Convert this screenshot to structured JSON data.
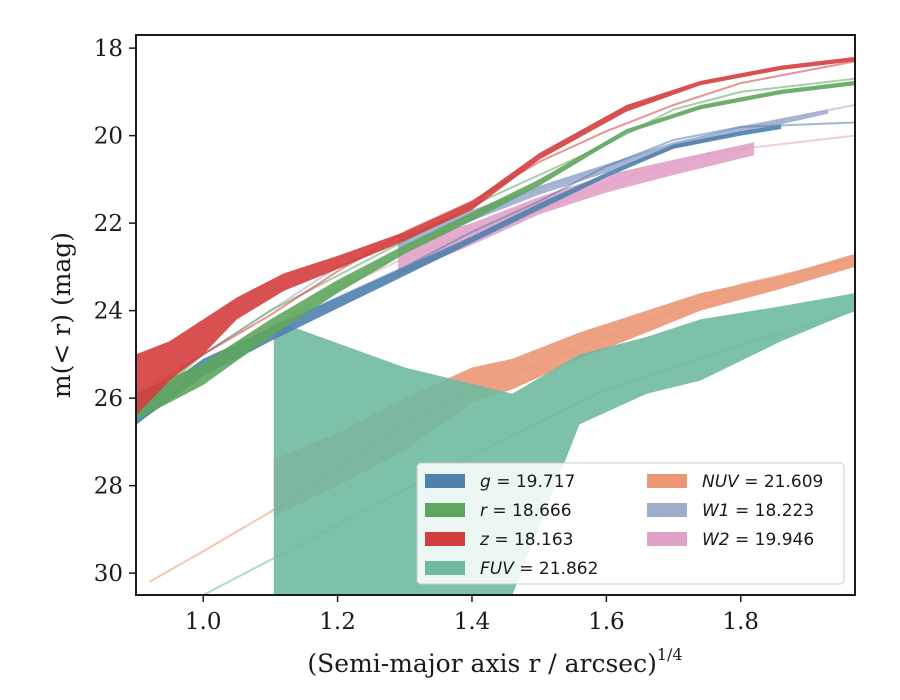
{
  "chart_data": {
    "type": "area",
    "title": "",
    "xlabel": "(Semi-major axis r / arcsec)",
    "xlabel_sup": "1/4",
    "ylabel": "m(< r) (mag)",
    "xlim": [
      0.9,
      1.97
    ],
    "ylim": [
      30.5,
      17.7
    ],
    "y_inverted": true,
    "grid": false,
    "legend_placement": "lower-right",
    "xticks": [
      1.0,
      1.2,
      1.4,
      1.6,
      1.8
    ],
    "xtick_labels": [
      "1.0",
      "1.2",
      "1.4",
      "1.6",
      "1.8"
    ],
    "yticks": [
      18,
      20,
      22,
      24,
      26,
      28,
      30
    ],
    "ytick_labels": [
      "18",
      "20",
      "22",
      "24",
      "26",
      "28",
      "30"
    ],
    "series": [
      {
        "name": "g = 19.717",
        "label_var": "g",
        "label_val": "19.717",
        "color": "#4f81ad",
        "band": [
          [
            0.9,
            26.2,
            26.6
          ],
          [
            1.0,
            25.1,
            25.5
          ],
          [
            1.1,
            24.4,
            24.7
          ],
          [
            1.2,
            23.7,
            23.95
          ],
          [
            1.3,
            23.0,
            23.2
          ],
          [
            1.4,
            22.3,
            22.45
          ],
          [
            1.5,
            21.55,
            21.7
          ],
          [
            1.6,
            20.85,
            20.95
          ],
          [
            1.7,
            20.2,
            20.3
          ],
          [
            1.8,
            19.9,
            20.0
          ],
          [
            1.86,
            19.75,
            19.85
          ]
        ],
        "curve": [
          [
            0.9,
            26.6
          ],
          [
            1.0,
            25.3
          ],
          [
            1.1,
            24.4
          ],
          [
            1.2,
            23.7
          ],
          [
            1.3,
            23.0
          ],
          [
            1.4,
            22.2
          ],
          [
            1.5,
            21.5
          ],
          [
            1.6,
            20.7
          ],
          [
            1.7,
            20.1
          ],
          [
            1.8,
            19.8
          ],
          [
            1.97,
            19.7
          ]
        ]
      },
      {
        "name": "r = 18.666",
        "label_var": "r",
        "label_val": "18.666",
        "color": "#5ea65e",
        "band": [
          [
            0.9,
            25.9,
            26.5
          ],
          [
            1.0,
            25.2,
            25.7
          ],
          [
            1.1,
            24.2,
            24.6
          ],
          [
            1.2,
            23.3,
            23.6
          ],
          [
            1.3,
            22.5,
            22.7
          ],
          [
            1.4,
            21.75,
            21.95
          ],
          [
            1.5,
            21.0,
            21.15
          ],
          [
            1.63,
            19.85,
            19.95
          ],
          [
            1.74,
            19.3,
            19.4
          ],
          [
            1.86,
            18.95,
            19.05
          ],
          [
            1.97,
            18.75,
            18.85
          ]
        ],
        "curve": [
          [
            0.9,
            26.3
          ],
          [
            1.0,
            25.0
          ],
          [
            1.1,
            24.0
          ],
          [
            1.2,
            23.2
          ],
          [
            1.3,
            22.4
          ],
          [
            1.4,
            21.6
          ],
          [
            1.5,
            20.9
          ],
          [
            1.6,
            20.2
          ],
          [
            1.7,
            19.4
          ],
          [
            1.8,
            19.0
          ],
          [
            1.97,
            18.7
          ]
        ]
      },
      {
        "name": "z = 18.163",
        "label_var": "z",
        "label_val": "18.163",
        "color": "#d43d3d",
        "band": [
          [
            0.9,
            25.0,
            26.4
          ],
          [
            0.95,
            24.7,
            25.6
          ],
          [
            1.0,
            24.2,
            25.0
          ],
          [
            1.05,
            23.7,
            24.2
          ],
          [
            1.12,
            23.15,
            23.55
          ],
          [
            1.2,
            22.75,
            23.05
          ],
          [
            1.3,
            22.2,
            22.4
          ],
          [
            1.4,
            21.5,
            21.7
          ],
          [
            1.5,
            20.4,
            20.55
          ],
          [
            1.63,
            19.3,
            19.45
          ],
          [
            1.74,
            18.75,
            18.85
          ],
          [
            1.86,
            18.4,
            18.5
          ],
          [
            1.97,
            18.2,
            18.3
          ]
        ],
        "curve": [
          [
            0.9,
            26.0
          ],
          [
            1.0,
            25.0
          ],
          [
            1.1,
            24.1
          ],
          [
            1.2,
            23.1
          ],
          [
            1.3,
            22.2
          ],
          [
            1.4,
            21.5
          ],
          [
            1.5,
            20.6
          ],
          [
            1.6,
            19.9
          ],
          [
            1.7,
            19.3
          ],
          [
            1.8,
            18.8
          ],
          [
            1.97,
            18.3
          ]
        ]
      },
      {
        "name": "FUV = 21.862",
        "label_var": "FUV",
        "label_val": "21.862",
        "color": "#6fbaa0",
        "band": [
          [
            1.105,
            24.3,
            30.5
          ],
          [
            1.12,
            24.3,
            30.5
          ],
          [
            1.3,
            25.3,
            30.5
          ],
          [
            1.46,
            25.9,
            30.5
          ],
          [
            1.56,
            25.0,
            26.6
          ],
          [
            1.66,
            24.6,
            25.9
          ],
          [
            1.74,
            24.2,
            25.6
          ],
          [
            1.86,
            23.9,
            24.7
          ],
          [
            1.97,
            23.6,
            24.0
          ]
        ],
        "curve": [
          [
            1.0,
            30.5
          ],
          [
            1.2,
            28.9
          ],
          [
            1.4,
            27.3
          ],
          [
            1.6,
            25.8
          ],
          [
            1.8,
            24.8
          ],
          [
            1.97,
            24.0
          ]
        ]
      },
      {
        "name": "NUV = 21.609",
        "label_var": "NUV",
        "label_val": "21.609",
        "color": "#ec9774",
        "band": [
          [
            1.105,
            27.4,
            28.7
          ],
          [
            1.2,
            26.8,
            28.0
          ],
          [
            1.3,
            26.0,
            27.2
          ],
          [
            1.4,
            25.3,
            26.1
          ],
          [
            1.46,
            25.1,
            25.8
          ],
          [
            1.56,
            24.5,
            25.1
          ],
          [
            1.66,
            24.0,
            24.5
          ],
          [
            1.74,
            23.6,
            24.0
          ],
          [
            1.86,
            23.2,
            23.5
          ],
          [
            1.97,
            22.7,
            23.0
          ]
        ],
        "curve": [
          [
            0.92,
            30.2
          ],
          [
            1.0,
            29.5
          ],
          [
            1.1,
            28.6
          ],
          [
            1.2,
            27.6
          ],
          [
            1.3,
            26.6
          ],
          [
            1.4,
            25.8
          ],
          [
            1.5,
            25.2
          ],
          [
            1.6,
            24.6
          ],
          [
            1.7,
            24.0
          ],
          [
            1.8,
            23.4
          ],
          [
            1.97,
            22.8
          ]
        ]
      },
      {
        "name": "W1 = 18.223",
        "label_var": "W1",
        "label_val": "18.223",
        "color": "#9fadcd",
        "band": [
          [
            1.29,
            22.3,
            22.6
          ],
          [
            1.4,
            21.7,
            21.95
          ],
          [
            1.5,
            21.15,
            21.35
          ],
          [
            1.6,
            20.65,
            20.85
          ],
          [
            1.7,
            20.15,
            20.3
          ],
          [
            1.8,
            19.8,
            19.95
          ],
          [
            1.93,
            19.4,
            19.5
          ]
        ],
        "curve": [
          [
            0.92,
            25.7
          ],
          [
            1.0,
            25.0
          ],
          [
            1.1,
            24.0
          ],
          [
            1.2,
            23.0
          ],
          [
            1.3,
            22.4
          ],
          [
            1.4,
            21.8
          ],
          [
            1.5,
            21.2
          ],
          [
            1.6,
            20.7
          ],
          [
            1.7,
            20.2
          ],
          [
            1.8,
            19.8
          ],
          [
            1.97,
            19.3
          ]
        ]
      },
      {
        "name": "W2 = 19.946",
        "label_var": "W2",
        "label_val": "19.946",
        "color": "#e1a2c8",
        "band": [
          [
            1.29,
            22.5,
            23.2
          ],
          [
            1.4,
            22.0,
            22.5
          ],
          [
            1.5,
            21.4,
            21.8
          ],
          [
            1.6,
            20.9,
            21.3
          ],
          [
            1.7,
            20.55,
            20.9
          ],
          [
            1.82,
            20.15,
            20.45
          ]
        ],
        "curve": [
          [
            0.92,
            26.2
          ],
          [
            1.0,
            25.4
          ],
          [
            1.1,
            24.4
          ],
          [
            1.2,
            23.5
          ],
          [
            1.3,
            22.8
          ],
          [
            1.4,
            22.2
          ],
          [
            1.5,
            21.7
          ],
          [
            1.6,
            21.1
          ],
          [
            1.7,
            20.6
          ],
          [
            1.8,
            20.3
          ],
          [
            1.97,
            20.0
          ]
        ]
      }
    ],
    "draw_order": [
      "NUV = 21.609",
      "FUV = 21.862",
      "W2 = 19.946",
      "W1 = 18.223",
      "g = 19.717",
      "r = 18.666",
      "z = 18.163"
    ]
  }
}
